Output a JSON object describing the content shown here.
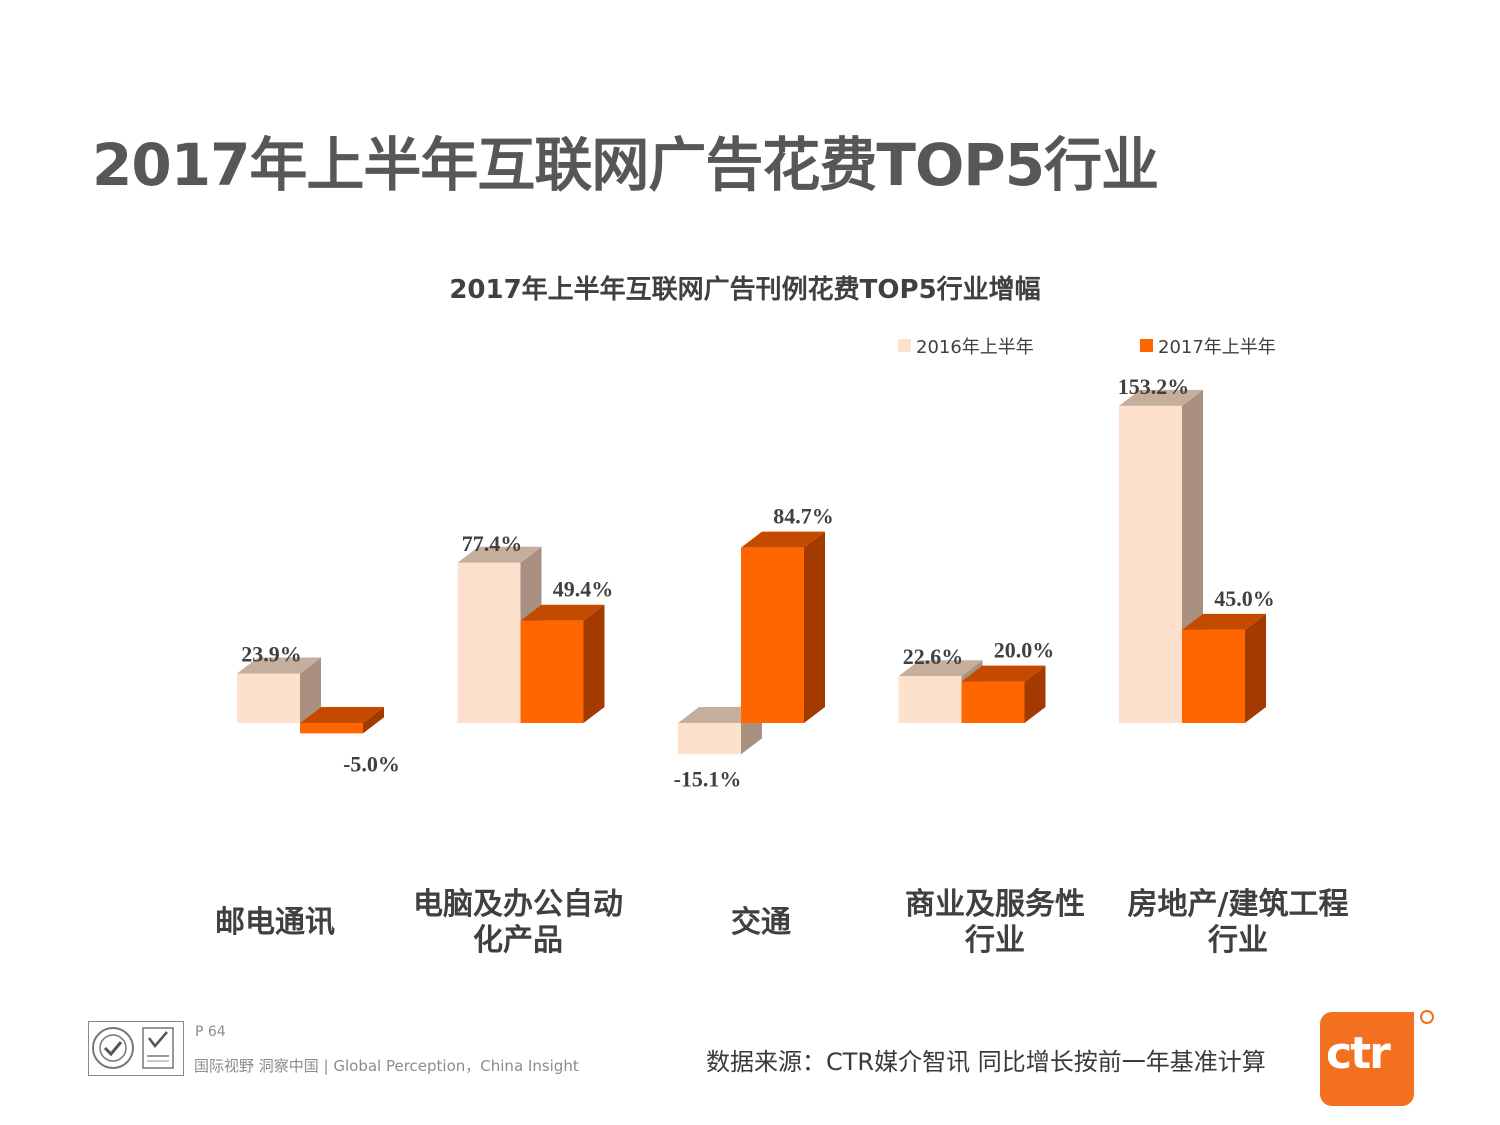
{
  "page": {
    "title": "2017年上半年互联网广告花费TOP5行业"
  },
  "footer": {
    "page_number": "P 64",
    "slogan": "国际视野  洞察中国 |  Global Perception，China Insight",
    "source": "数据来源：CTR媒介智讯    同比增长按前一年基准计算",
    "logo_text": "ctr"
  },
  "chart_data": {
    "type": "bar",
    "title": "2017年上半年互联网广告刊例花费TOP5行业增幅",
    "categories": [
      [
        "邮电通讯"
      ],
      [
        "电脑及办公自动",
        "化产品"
      ],
      [
        "交通"
      ],
      [
        "商业及服务性",
        "行业"
      ],
      [
        "房地产/建筑工程",
        "行业"
      ]
    ],
    "series": [
      {
        "name": "2016年上半年",
        "values": [
          23.9,
          77.4,
          -15.1,
          22.6,
          153.2
        ],
        "labels": [
          "23.9%",
          "77.4%",
          "-15.1%",
          "22.6%",
          "153.2%"
        ]
      },
      {
        "name": "2017年上半年",
        "values": [
          -5.0,
          49.4,
          84.7,
          20.0,
          45.0
        ],
        "labels": [
          "-5.0%",
          "49.4%",
          "84.7%",
          "20.0%",
          "45.0%"
        ]
      }
    ],
    "colors": {
      "2016年上半年": {
        "front": "#fde1cd",
        "side": "#a99080",
        "top": "#c5ae9c"
      },
      "2017年上半年": {
        "front": "#ff6600",
        "side": "#a33b00",
        "top": "#c44a00"
      }
    },
    "legend": "top-right",
    "grid": false,
    "three_d": true,
    "xlabel": "",
    "ylabel": ""
  }
}
